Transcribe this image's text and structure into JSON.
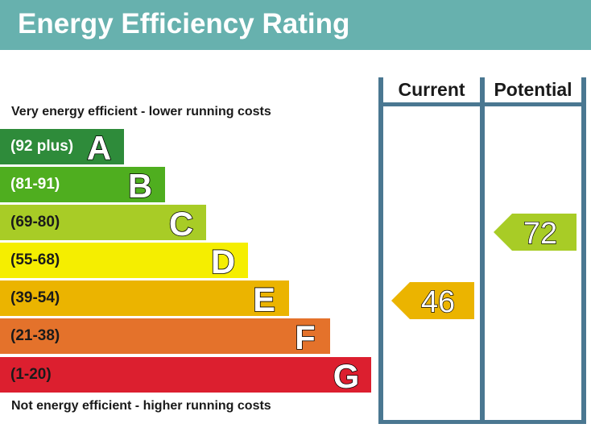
{
  "title": "Energy Efficiency Rating",
  "top_caption": "Very energy efficient - lower running costs",
  "bottom_caption": "Not energy efficient - higher running costs",
  "columns": {
    "current": "Current",
    "potential": "Potential"
  },
  "bands": [
    {
      "letter": "A",
      "range": "(92 plus)",
      "color": "#2e8b3a",
      "text_color": "#ffffff"
    },
    {
      "letter": "B",
      "range": "(81-91)",
      "color": "#4fae1f",
      "text_color": "#ffffff"
    },
    {
      "letter": "C",
      "range": "(69-80)",
      "color": "#a8cc26",
      "text_color": "#1a1a1a"
    },
    {
      "letter": "D",
      "range": "(55-68)",
      "color": "#f5ee00",
      "text_color": "#1a1a1a"
    },
    {
      "letter": "E",
      "range": "(39-54)",
      "color": "#ebb400",
      "text_color": "#1a1a1a"
    },
    {
      "letter": "F",
      "range": "(21-38)",
      "color": "#e4722b",
      "text_color": "#1a1a1a"
    },
    {
      "letter": "G",
      "range": "(1-20)",
      "color": "#dc1f2f",
      "text_color": "#1a1a1a"
    }
  ],
  "current_rating": {
    "value": "46",
    "band": "E",
    "color": "#ebb400"
  },
  "potential_rating": {
    "value": "72",
    "band": "C",
    "color": "#a8cc26"
  },
  "frame_color": "#4a7791",
  "header_color": "#67b1ae"
}
